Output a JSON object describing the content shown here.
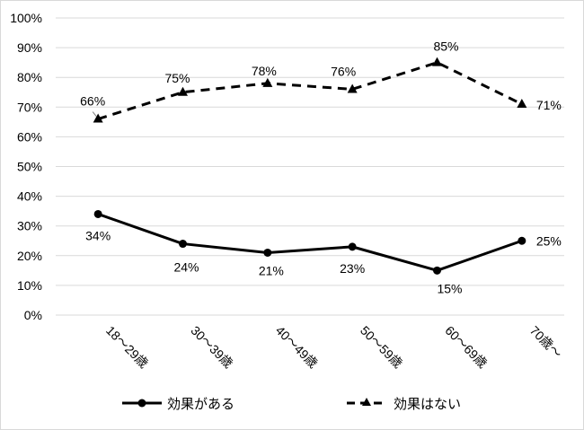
{
  "chart_data": {
    "type": "line",
    "categories": [
      "18～29歳",
      "30～39歳",
      "40～49歳",
      "50～59歳",
      "60～69歳",
      "70歳～"
    ],
    "y_tick_labels": [
      "0%",
      "10%",
      "20%",
      "30%",
      "40%",
      "50%",
      "60%",
      "70%",
      "80%",
      "90%",
      "100%"
    ],
    "ylim": [
      0,
      100
    ],
    "grid": true,
    "legend_position": "bottom",
    "series": [
      {
        "name": "効果がある",
        "values": [
          34,
          24,
          21,
          23,
          15,
          25
        ],
        "labels": [
          "34%",
          "24%",
          "21%",
          "23%",
          "15%",
          "25%"
        ],
        "line_style": "solid",
        "marker": "circle",
        "color": "#000000"
      },
      {
        "name": "効果はない",
        "values": [
          66,
          75,
          78,
          76,
          85,
          71
        ],
        "labels": [
          "66%",
          "75%",
          "78%",
          "76%",
          "85%",
          "71%"
        ],
        "line_style": "dashed",
        "marker": "triangle",
        "color": "#000000"
      }
    ]
  },
  "colors": {
    "grid": "#d9d9d9",
    "border": "#d9d9d9",
    "line": "#000000"
  }
}
